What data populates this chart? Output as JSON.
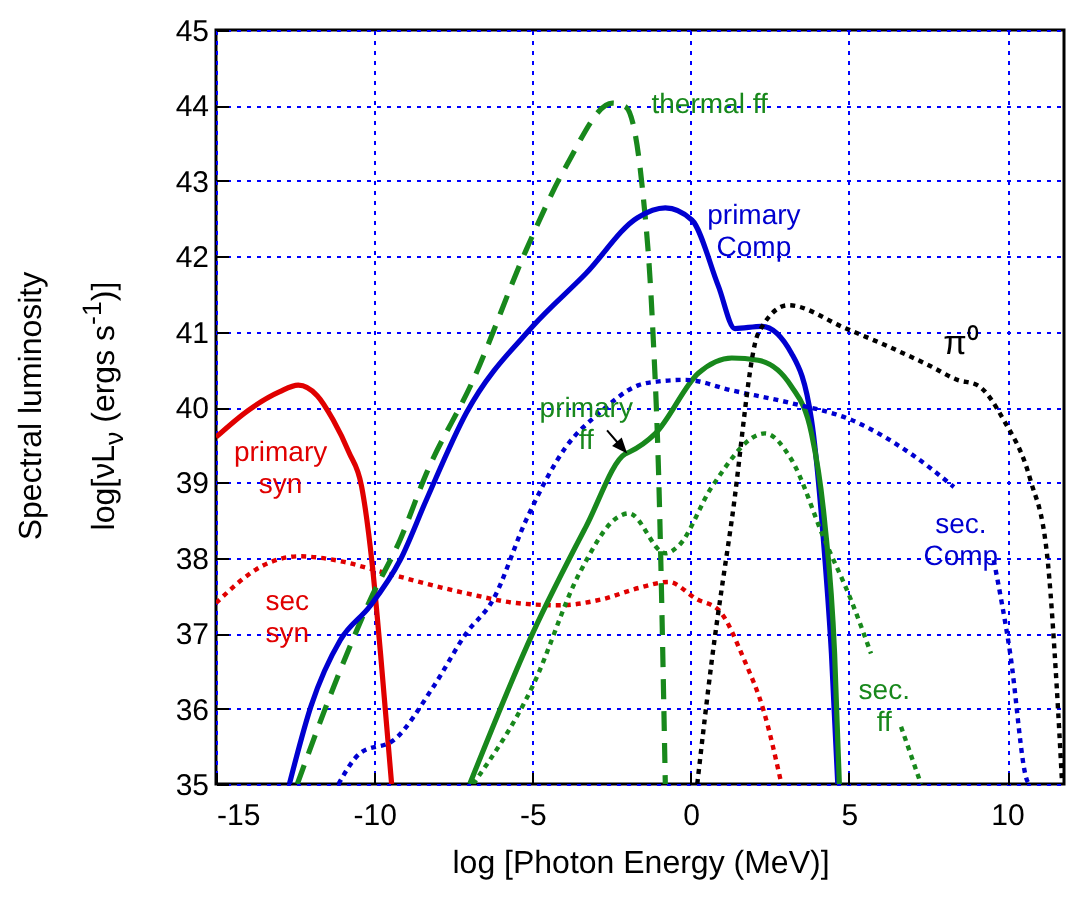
{
  "chart_data": {
    "type": "line",
    "xlabel": "log [Photon Energy (MeV)]",
    "ylabel": "Spectral luminosity\nlog[νL$_{ν}$ (ergs s$^{-1}$)]",
    "xlim": [
      -15,
      11.8
    ],
    "xticks": [
      -15,
      -10,
      -5,
      0,
      5,
      10
    ],
    "ylim": [
      35,
      45
    ],
    "yticks": [
      35,
      36,
      37,
      38,
      39,
      40,
      41,
      42,
      43,
      44,
      45
    ],
    "grid": true,
    "series": [
      {
        "name": "primary syn",
        "color": "#e00000",
        "line_style": "solid",
        "x": [
          -15,
          -14,
          -13,
          -12.4,
          -11.8,
          -11.3,
          -10.8,
          -10.4,
          -10.06,
          -9.8,
          -9.45
        ],
        "values": [
          39.6,
          39.95,
          40.2,
          40.29,
          40.15,
          39.83,
          39.4,
          38.95,
          37.9,
          36.73,
          35
        ]
      },
      {
        "name": "sec syn",
        "color": "#e00000",
        "line_style": "dotted",
        "x": [
          -15,
          -13.5,
          -12.4,
          -11,
          -10,
          -7.1,
          -5.5,
          -4.15,
          -2.8,
          -1.64,
          -0.7,
          0.2,
          0.88,
          1.7,
          2.33,
          2.87
        ],
        "values": [
          37.4,
          37.9,
          38.02,
          37.95,
          37.84,
          37.53,
          37.4,
          37.37,
          37.45,
          37.6,
          37.68,
          37.45,
          37.31,
          36.64,
          35.94,
          35
        ]
      },
      {
        "name": "thermal ff",
        "color": "#18881c",
        "line_style": "dashed",
        "x": [
          -12.43,
          -11.28,
          -10.13,
          -9.18,
          -8.35,
          -6.87,
          -5.2,
          -3.94,
          -2.47,
          -2.05,
          -1.53,
          -1.21,
          -1.0,
          -0.8
        ],
        "values": [
          35,
          36.29,
          37.44,
          38.24,
          39.12,
          40.36,
          42.08,
          43.19,
          44.03,
          43.98,
          42.92,
          41.15,
          38.94,
          35
        ]
      },
      {
        "name": "primary Comp",
        "color": "#0000d0",
        "line_style": "solid",
        "x": [
          -12.68,
          -12.0,
          -11.07,
          -10.13,
          -9.18,
          -8.35,
          -7.09,
          -4.99,
          -3.31,
          -1.68,
          -0.8,
          0.04,
          0.88,
          1.4,
          2.25,
          3.19,
          3.82,
          4.23,
          4.45,
          4.65
        ],
        "values": [
          35,
          36.03,
          36.91,
          37.36,
          37.97,
          38.77,
          39.92,
          41.07,
          41.77,
          42.51,
          42.64,
          42.48,
          41.6,
          41.04,
          41.07,
          40.71,
          39.83,
          38.06,
          36.73,
          35
        ]
      },
      {
        "name": "primary ff",
        "color": "#18881c",
        "line_style": "solid",
        "x": [
          -6.98,
          -4.99,
          -3.31,
          -2.06,
          -1.95,
          -1.11,
          0.25,
          1.3,
          2.14,
          3.19,
          3.82,
          4.23,
          4.55,
          4.7
        ],
        "values": [
          35,
          37.0,
          38.41,
          39.38,
          39.4,
          39.65,
          40.45,
          40.65,
          40.62,
          40.27,
          39.65,
          38.5,
          36.73,
          35
        ]
      },
      {
        "name": "sec. ff",
        "color": "#18881c",
        "line_style": "dotted",
        "x": [
          -6.87,
          -4.99,
          -3.52,
          -2.26,
          -1.95,
          -0.8,
          -0.38,
          0.67,
          2.35,
          3.19,
          4.23,
          5.07,
          5.7,
          6.1,
          6.65,
          7.28
        ],
        "values": [
          35,
          36.3,
          37.79,
          38.55,
          38.59,
          38.06,
          38.16,
          38.94,
          39.65,
          39.3,
          38.24,
          37.44,
          36.73,
          null,
          35.76,
          35
        ]
      },
      {
        "name": "sec. Comp",
        "color": "#0000d0",
        "line_style": "dotted",
        "x": [
          -11.13,
          -10.44,
          -9.39,
          -8.13,
          -7.09,
          -6.25,
          -5.2,
          -3.94,
          -2.89,
          -1.64,
          -1.0,
          -0.17,
          1.3,
          3.19,
          5.07,
          6.96,
          8.32,
          8.9,
          9.58,
          10.1,
          10.63,
          10.7
        ],
        "values": [
          35,
          35.41,
          35.58,
          36.29,
          37.0,
          37.44,
          38.5,
          39.47,
          39.92,
          40.29,
          40.34,
          40.36,
          40.22,
          40.05,
          39.83,
          39.38,
          38.94,
          null,
          37.97,
          36.73,
          35.05,
          35
        ]
      },
      {
        "name": "π⁰",
        "color": "#000000",
        "line_style": "dotted",
        "x": [
          0.21,
          0.67,
          1.3,
          2.14,
          3.08,
          4.86,
          7.59,
          8.43,
          9.06,
          9.89,
          10.74,
          11.26,
          11.57,
          11.74
        ],
        "values": [
          35,
          36.64,
          38.5,
          40.98,
          41.35,
          41.05,
          40.54,
          40.36,
          40.29,
          39.83,
          39.03,
          38.06,
          36.29,
          35
        ]
      }
    ]
  }
}
